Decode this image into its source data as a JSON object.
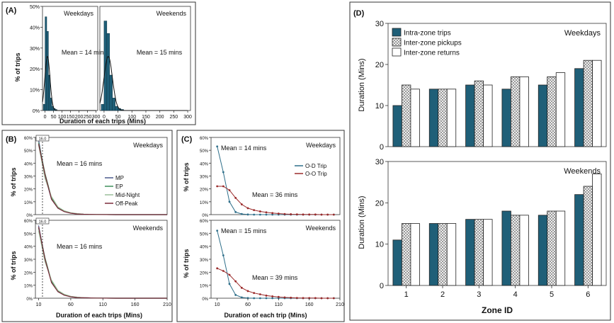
{
  "colors": {
    "bar_teal": "#1f5f78",
    "bar_checker": "#c8c8c8",
    "bar_white": "#ffffff",
    "mp": "#4a5a8c",
    "ep": "#3f8f5a",
    "midnight": "#9bbf9b",
    "offpeak": "#7a2a3a",
    "od": "#2f6f8a",
    "oo": "#9a2a2a"
  },
  "chart_data": [
    {
      "id": "A-weekdays",
      "panel_label": "(A)",
      "type": "bar",
      "title": "Weekdays",
      "annotation": "Mean = 14 mins",
      "ylabel": "% of trips",
      "xlabel": "Duration of each trips (Mins)",
      "xlim": [
        -15,
        310
      ],
      "ylim": [
        0,
        50
      ],
      "xticks": [
        "0",
        "50",
        "100",
        "150",
        "200",
        "250",
        "300"
      ],
      "yticks": [
        "0%",
        "10%",
        "20%",
        "30%",
        "40%",
        "50%"
      ],
      "bin_width": 10,
      "bin_starts": [
        -10,
        0,
        10,
        20,
        30,
        40,
        50,
        60
      ],
      "values": [
        3,
        45,
        38,
        17,
        6,
        2,
        1,
        0.5
      ],
      "fit_curve": {
        "mean": 14,
        "sd": 15,
        "peak": 26
      }
    },
    {
      "id": "A-weekends",
      "type": "bar",
      "title": "Weekends",
      "annotation": "Mean = 15 mins",
      "xlim": [
        -15,
        310
      ],
      "ylim": [
        0,
        50
      ],
      "xticks": [
        "0",
        "50",
        "100",
        "150",
        "200",
        "250",
        "300"
      ],
      "bin_width": 10,
      "bin_starts": [
        -10,
        0,
        10,
        20,
        30,
        40,
        50,
        60
      ],
      "values": [
        3,
        43,
        37,
        17,
        6,
        2,
        1,
        0.5
      ],
      "fit_curve": {
        "mean": 15,
        "sd": 15,
        "peak": 26
      }
    },
    {
      "id": "B-weekdays",
      "panel_label": "(B)",
      "type": "line",
      "title": "Weekdays",
      "annotation": "Mean = 16 mins",
      "marker_label": "16.0",
      "ylabel": "% of trips",
      "xlim": [
        5,
        210
      ],
      "ylim": [
        0,
        60
      ],
      "yticks": [
        "0%",
        "10%",
        "20%",
        "30%",
        "40%",
        "50%",
        "60%"
      ],
      "x": [
        10,
        20,
        30,
        40,
        50,
        60,
        70,
        80,
        100,
        130,
        160,
        210
      ],
      "series": [
        {
          "name": "MP",
          "values": [
            58,
            30,
            12,
            5,
            2.5,
            1.2,
            0.6,
            0.3,
            0.1,
            0,
            0,
            0
          ]
        },
        {
          "name": "EP",
          "values": [
            56,
            32,
            13,
            5.5,
            2.5,
            1.2,
            0.6,
            0.3,
            0.1,
            0,
            0,
            0
          ]
        },
        {
          "name": "Mid-Night",
          "values": [
            54,
            28,
            14,
            6,
            3,
            1.5,
            0.8,
            0.4,
            0.1,
            0,
            0,
            0
          ]
        },
        {
          "name": "Off-Peak",
          "values": [
            55,
            31,
            12,
            5,
            2.3,
            1.1,
            0.5,
            0.3,
            0.1,
            0,
            0,
            0
          ]
        }
      ]
    },
    {
      "id": "B-weekends",
      "type": "line",
      "title": "Weekends",
      "annotation": "Mean = 16 mins",
      "marker_label": "16.0",
      "ylabel": "% of trips",
      "xlabel": "Duration of each trips (Mins)",
      "xlim": [
        5,
        210
      ],
      "ylim": [
        0,
        60
      ],
      "xticks": [
        "10",
        "60",
        "110",
        "160",
        "210"
      ],
      "yticks": [
        "0%",
        "10%",
        "20%",
        "30%",
        "40%",
        "50%",
        "60%"
      ],
      "x": [
        10,
        20,
        30,
        40,
        50,
        60,
        70,
        80,
        100,
        130,
        160,
        210
      ],
      "series": [
        {
          "name": "MP",
          "values": [
            56,
            30,
            13,
            5,
            2.5,
            1.2,
            0.6,
            0.3,
            0.1,
            0,
            0,
            0
          ]
        },
        {
          "name": "EP",
          "values": [
            54,
            31,
            13,
            5.5,
            2.5,
            1.2,
            0.6,
            0.3,
            0.1,
            0,
            0,
            0
          ]
        },
        {
          "name": "Mid-Night",
          "values": [
            52,
            28,
            14,
            6,
            3,
            1.5,
            0.8,
            0.4,
            0.1,
            0,
            0,
            0
          ]
        },
        {
          "name": "Off-Peak",
          "values": [
            55,
            30,
            12,
            5,
            2.3,
            1.1,
            0.5,
            0.3,
            0.1,
            0,
            0,
            0
          ]
        }
      ]
    },
    {
      "id": "C-weekdays",
      "panel_label": "(C)",
      "type": "line",
      "title": "Weekdays",
      "annotation_od": "Mean = 14 mins",
      "annotation_oo": "Mean = 36 mins",
      "ylabel": "% of trips",
      "xlim": [
        0,
        210
      ],
      "ylim": [
        0,
        60
      ],
      "yticks": [
        "0%",
        "10%",
        "20%",
        "30%",
        "40%",
        "50%",
        "60%"
      ],
      "x": [
        10,
        20,
        30,
        40,
        50,
        60,
        70,
        80,
        90,
        100,
        110,
        120,
        130,
        140,
        150,
        160,
        170,
        180,
        190,
        200
      ],
      "series": [
        {
          "name": "O-D Trip",
          "values": [
            53,
            33,
            10,
            2,
            0.5,
            0.1,
            0,
            0,
            0,
            0,
            0,
            0,
            0,
            0,
            0,
            0,
            0,
            0,
            0,
            0
          ]
        },
        {
          "name": "O-O Trip",
          "values": [
            22,
            22,
            19,
            13,
            8,
            5,
            3.5,
            2.5,
            1.8,
            1.2,
            0.8,
            0.5,
            0.3,
            0.2,
            0.1,
            0.1,
            0.1,
            0,
            0,
            0
          ]
        }
      ]
    },
    {
      "id": "C-weekends",
      "type": "line",
      "title": "Weekends",
      "annotation_od": "Mean = 15 mins",
      "annotation_oo": "Mean = 39 mins",
      "ylabel": "% of trips",
      "xlabel": "Duration of each trip (Mins)",
      "xlim": [
        0,
        210
      ],
      "ylim": [
        0,
        60
      ],
      "xticks": [
        "10",
        "60",
        "110",
        "160",
        "210"
      ],
      "yticks": [
        "0%",
        "10%",
        "20%",
        "30%",
        "40%",
        "50%",
        "60%"
      ],
      "x": [
        10,
        20,
        30,
        40,
        50,
        60,
        70,
        80,
        90,
        100,
        110,
        120,
        130,
        140,
        150,
        160,
        170,
        180,
        190,
        200
      ],
      "series": [
        {
          "name": "O-D Trip",
          "values": [
            52,
            33,
            11,
            2.5,
            0.6,
            0.1,
            0,
            0,
            0,
            0,
            0,
            0,
            0,
            0,
            0,
            0,
            0,
            0,
            0,
            0
          ]
        },
        {
          "name": "O-O Trip",
          "values": [
            23,
            21,
            18,
            13,
            8,
            5.5,
            4,
            3,
            2,
            1.4,
            1,
            0.6,
            0.4,
            0.2,
            0.1,
            0.1,
            0.1,
            0,
            0,
            0
          ]
        }
      ]
    },
    {
      "id": "D-weekdays",
      "panel_label": "(D)",
      "type": "bar",
      "title": "Weekdays",
      "ylabel": "Duration (Mins)",
      "ylim": [
        0,
        30
      ],
      "yticks": [
        "0",
        "10",
        "20",
        "30"
      ],
      "categories": [
        "1",
        "2",
        "3",
        "4",
        "5",
        "6"
      ],
      "legend": [
        "Intra-zone trips",
        "Inter-zone pickups",
        "Inter-zone returns"
      ],
      "series": [
        {
          "name": "Intra-zone trips",
          "values": [
            10,
            14,
            15,
            14,
            15,
            19
          ]
        },
        {
          "name": "Inter-zone pickups",
          "values": [
            15,
            14,
            16,
            17,
            17,
            21
          ]
        },
        {
          "name": "Inter-zone returns",
          "values": [
            14,
            14,
            15,
            17,
            18,
            21
          ]
        }
      ]
    },
    {
      "id": "D-weekends",
      "type": "bar",
      "title": "Weekends",
      "ylabel": "Duration (Mins)",
      "xlabel": "Zone ID",
      "ylim": [
        0,
        30
      ],
      "yticks": [
        "0",
        "10",
        "20",
        "30"
      ],
      "categories": [
        "1",
        "2",
        "3",
        "4",
        "5",
        "6"
      ],
      "series": [
        {
          "name": "Intra-zone trips",
          "values": [
            11,
            15,
            16,
            18,
            17,
            22
          ]
        },
        {
          "name": "Inter-zone pickups",
          "values": [
            15,
            15,
            16,
            17,
            18,
            24
          ]
        },
        {
          "name": "Inter-zone returns",
          "values": [
            15,
            15,
            16,
            17,
            18,
            27
          ]
        }
      ]
    }
  ]
}
